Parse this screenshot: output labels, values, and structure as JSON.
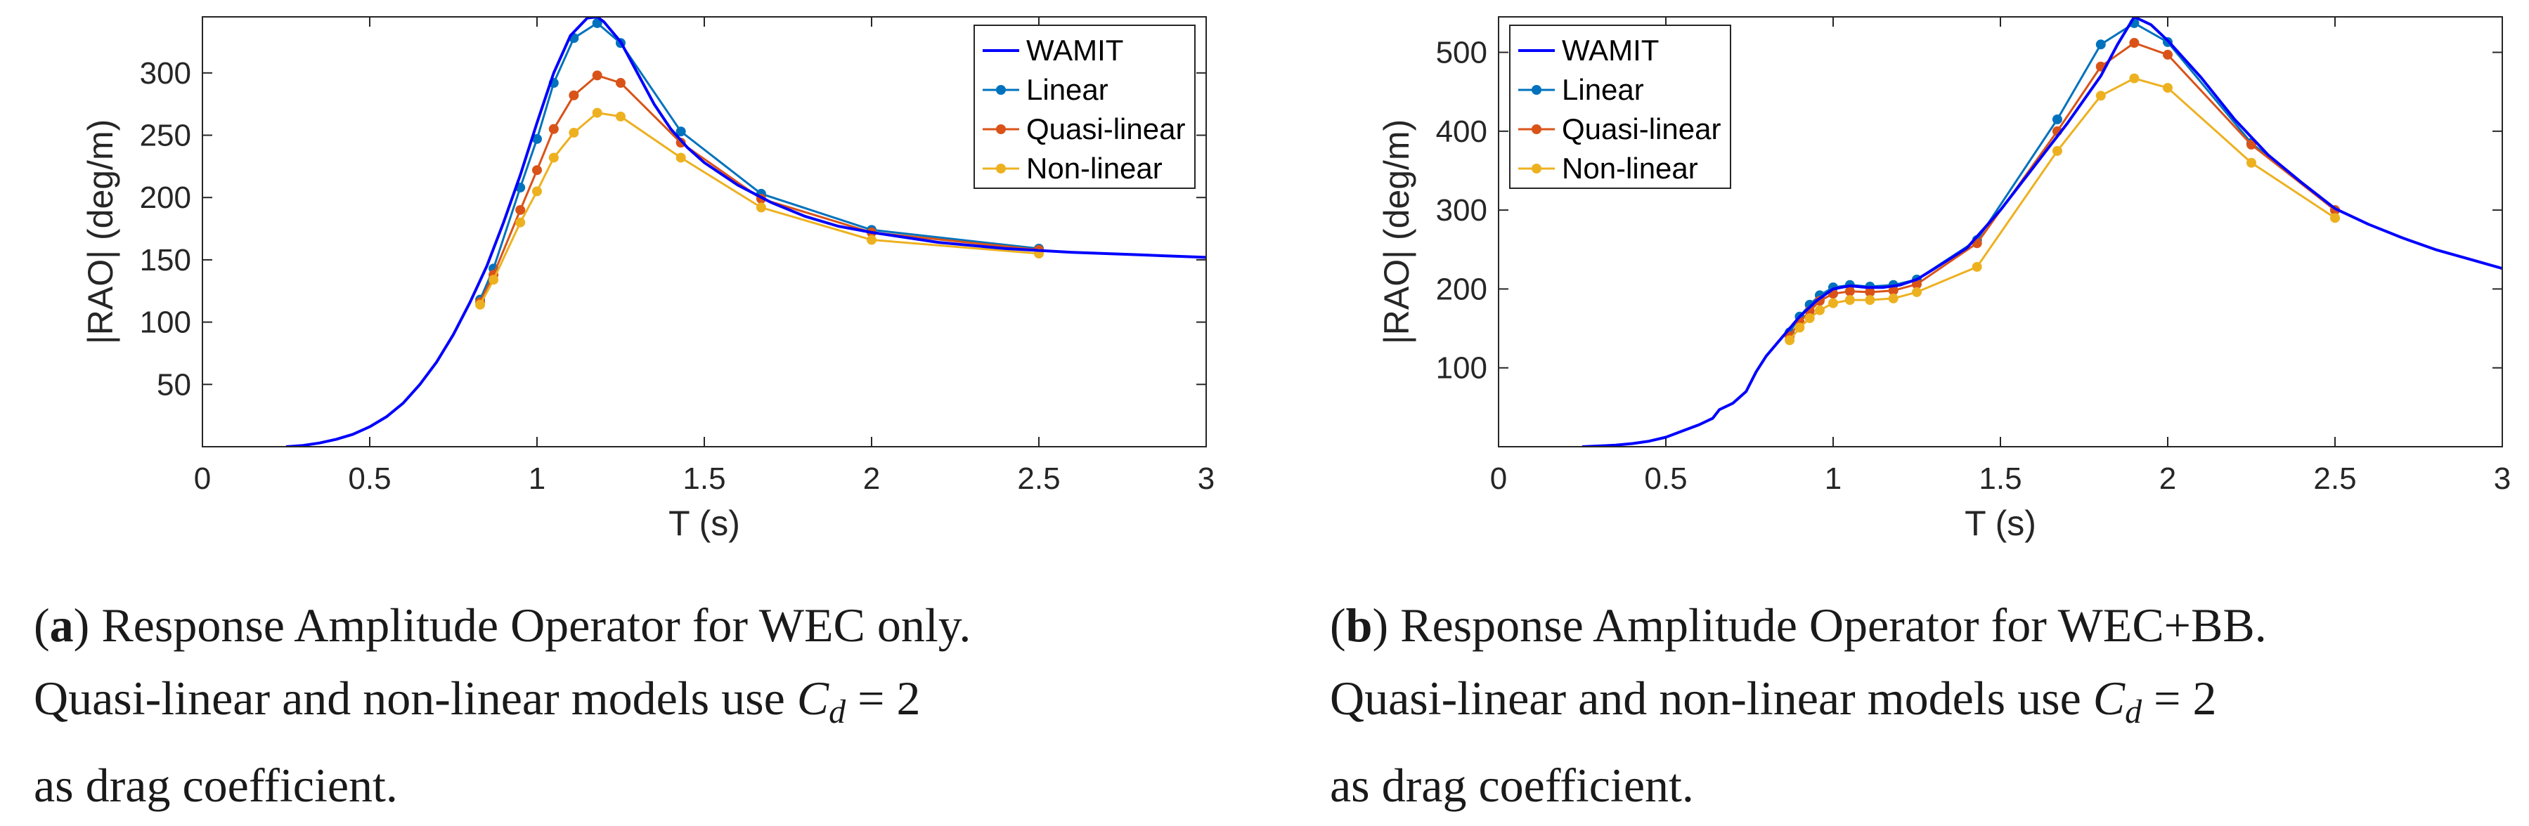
{
  "chart_data": [
    {
      "type": "line",
      "panel": "a",
      "xlabel": "T (s)",
      "ylabel": "|RAO| (deg/m)",
      "xlim": [
        0,
        3
      ],
      "ylim": [
        0,
        345
      ],
      "xticks": [
        0,
        0.5,
        1,
        1.5,
        2,
        2.5,
        3
      ],
      "xtick_labels": [
        "0",
        "0.5",
        "1",
        "1.5",
        "2",
        "2.5",
        "3"
      ],
      "yticks": [
        50,
        100,
        150,
        200,
        250,
        300
      ],
      "ytick_labels": [
        "50",
        "100",
        "150",
        "200",
        "250",
        "300"
      ],
      "legend_position": "top-right",
      "series": [
        {
          "name": "WAMIT",
          "color": "#0000ff",
          "markers": false,
          "x": [
            0.25,
            0.3,
            0.35,
            0.4,
            0.45,
            0.5,
            0.55,
            0.6,
            0.65,
            0.7,
            0.75,
            0.8,
            0.85,
            0.9,
            0.95,
            1.0,
            1.05,
            1.1,
            1.15,
            1.18,
            1.2,
            1.25,
            1.3,
            1.35,
            1.4,
            1.45,
            1.5,
            1.6,
            1.7,
            1.8,
            1.9,
            2.0,
            2.2,
            2.4,
            2.6,
            2.8,
            3.0
          ],
          "y": [
            0,
            1,
            3,
            6,
            10,
            16,
            24,
            35,
            50,
            68,
            90,
            116,
            145,
            180,
            218,
            260,
            300,
            330,
            344,
            345,
            341,
            325,
            300,
            275,
            255,
            240,
            228,
            210,
            196,
            185,
            177,
            172,
            164,
            159,
            156,
            154,
            152
          ]
        },
        {
          "name": "Linear",
          "color": "#0072bd",
          "markers": true,
          "x": [
            0.83,
            0.87,
            0.95,
            1.0,
            1.05,
            1.11,
            1.18,
            1.25,
            1.43,
            1.67,
            2.0,
            2.5
          ],
          "y": [
            118,
            143,
            208,
            247,
            292,
            328,
            340,
            324,
            253,
            203,
            174,
            159
          ]
        },
        {
          "name": "Quasi-linear",
          "color": "#d95319",
          "markers": true,
          "x": [
            0.83,
            0.87,
            0.95,
            1.0,
            1.05,
            1.11,
            1.18,
            1.25,
            1.43,
            1.67,
            2.0,
            2.5
          ],
          "y": [
            116,
            138,
            190,
            222,
            255,
            282,
            298,
            292,
            244,
            199,
            172,
            158
          ]
        },
        {
          "name": "Non-linear",
          "color": "#edb120",
          "markers": true,
          "x": [
            0.83,
            0.87,
            0.95,
            1.0,
            1.05,
            1.11,
            1.18,
            1.25,
            1.43,
            1.67,
            2.0,
            2.5
          ],
          "y": [
            114,
            134,
            180,
            205,
            232,
            252,
            268,
            265,
            232,
            192,
            166,
            155
          ]
        }
      ]
    },
    {
      "type": "line",
      "panel": "b",
      "xlabel": "T (s)",
      "ylabel": "|RAO| (deg/m)",
      "xlim": [
        0,
        3
      ],
      "ylim": [
        0,
        545
      ],
      "xticks": [
        0,
        0.5,
        1,
        1.5,
        2,
        2.5,
        3
      ],
      "xtick_labels": [
        "0",
        "0.5",
        "1",
        "1.5",
        "2",
        "2.5",
        "3"
      ],
      "yticks": [
        100,
        200,
        300,
        400,
        500
      ],
      "ytick_labels": [
        "100",
        "200",
        "300",
        "400",
        "500"
      ],
      "legend_position": "top-left",
      "series": [
        {
          "name": "WAMIT",
          "color": "#0000ff",
          "markers": false,
          "x": [
            0.25,
            0.3,
            0.35,
            0.4,
            0.45,
            0.5,
            0.55,
            0.6,
            0.64,
            0.66,
            0.7,
            0.74,
            0.77,
            0.8,
            0.85,
            0.9,
            0.95,
            1.0,
            1.05,
            1.1,
            1.15,
            1.2,
            1.25,
            1.3,
            1.4,
            1.5,
            1.6,
            1.7,
            1.8,
            1.85,
            1.9,
            1.95,
            2.0,
            2.1,
            2.2,
            2.3,
            2.4,
            2.5,
            2.6,
            2.7,
            2.8,
            2.9,
            3.0
          ],
          "y": [
            0,
            1,
            2,
            4,
            7,
            12,
            20,
            28,
            36,
            47,
            55,
            70,
            95,
            115,
            140,
            165,
            185,
            200,
            204,
            202,
            202,
            205,
            212,
            225,
            252,
            300,
            355,
            410,
            470,
            510,
            545,
            535,
            515,
            468,
            415,
            370,
            335,
            302,
            282,
            265,
            250,
            238,
            226
          ]
        },
        {
          "name": "Linear",
          "color": "#0072bd",
          "markers": true,
          "x": [
            0.87,
            0.9,
            0.93,
            0.96,
            1.0,
            1.05,
            1.11,
            1.18,
            1.25,
            1.43,
            1.67,
            1.8,
            1.9,
            2.0,
            2.25,
            2.5
          ],
          "y": [
            145,
            165,
            180,
            192,
            202,
            205,
            203,
            205,
            212,
            262,
            415,
            510,
            537,
            513,
            385,
            300
          ]
        },
        {
          "name": "Quasi-linear",
          "color": "#d95319",
          "markers": true,
          "x": [
            0.87,
            0.9,
            0.93,
            0.96,
            1.0,
            1.05,
            1.11,
            1.18,
            1.25,
            1.43,
            1.67,
            1.8,
            1.9,
            2.0,
            2.25,
            2.5
          ],
          "y": [
            140,
            158,
            172,
            185,
            194,
            197,
            196,
            198,
            206,
            258,
            400,
            482,
            512,
            497,
            383,
            300
          ]
        },
        {
          "name": "Non-linear",
          "color": "#edb120",
          "markers": true,
          "x": [
            0.87,
            0.9,
            0.93,
            0.96,
            1.0,
            1.05,
            1.11,
            1.18,
            1.25,
            1.43,
            1.67,
            1.8,
            1.9,
            2.0,
            2.25,
            2.5
          ],
          "y": [
            135,
            151,
            163,
            173,
            182,
            186,
            186,
            188,
            196,
            228,
            375,
            445,
            467,
            455,
            360,
            290
          ]
        }
      ]
    }
  ],
  "captions": {
    "a": {
      "letter": "a",
      "line1_rest": " Response Amplitude Operator for WEC only.",
      "line2_pre": "Quasi-linear and non-linear models use ",
      "var": "C",
      "sub": "d",
      "eq": " = 2",
      "line3": "as drag coefficient."
    },
    "b": {
      "letter": "b",
      "line1_rest": " Response Amplitude Operator for WEC+BB.",
      "line2_pre": "Quasi-linear and non-linear models use ",
      "var": "C",
      "sub": "d",
      "eq": " = 2",
      "line3": "as drag coefficient."
    }
  }
}
